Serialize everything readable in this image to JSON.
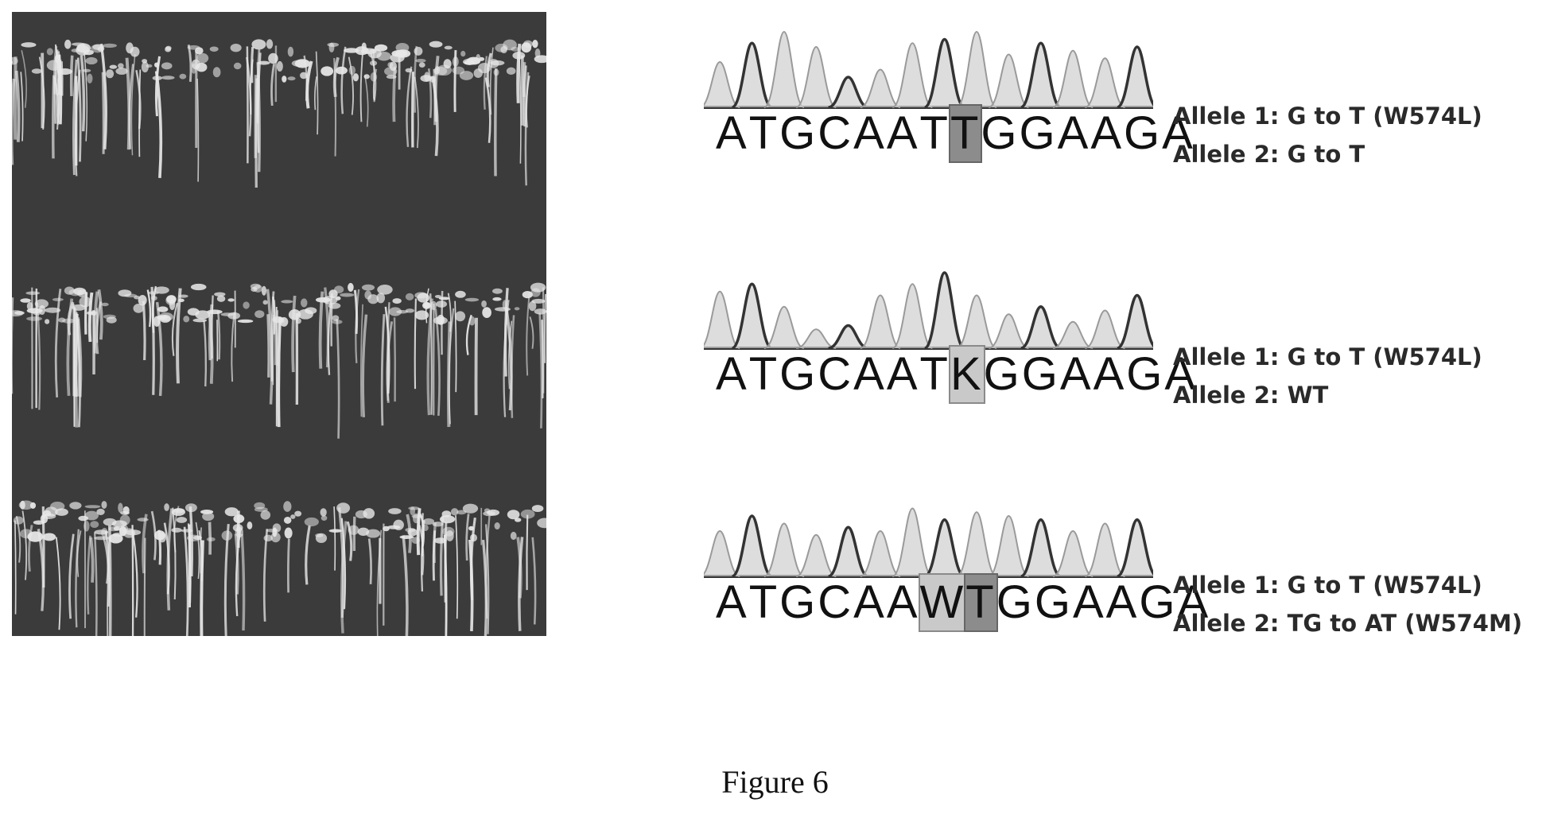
{
  "figure": {
    "caption": "Figure 6",
    "panels": [
      {
        "id": "p1",
        "sequence": [
          "A",
          "T",
          "G",
          "C",
          "A",
          "A",
          "T",
          "T",
          "G",
          "G",
          "A",
          "A",
          "G",
          "A"
        ],
        "highlight_index": 7,
        "highlight_style": "dark",
        "allele_1": "Allele 1: G to T (W574L)",
        "allele_2": "Allele 2: G to T"
      },
      {
        "id": "p2",
        "sequence": [
          "A",
          "T",
          "G",
          "C",
          "A",
          "A",
          "T",
          "K",
          "G",
          "G",
          "A",
          "A",
          "G",
          "A"
        ],
        "highlight_index": 7,
        "highlight_style": "light",
        "allele_1": "Allele 1: G to T (W574L)",
        "allele_2": "Allele 2: WT"
      },
      {
        "id": "p3",
        "sequence": [
          "A",
          "T",
          "G",
          "C",
          "A",
          "A",
          "W",
          "T",
          "G",
          "G",
          "A",
          "A",
          "G",
          "A"
        ],
        "highlight_index": [
          6,
          7
        ],
        "highlight_style": "mixed",
        "allele_1": "Allele 1:  G to T  (W574L)",
        "allele_2": "Allele 2: TG to AT (W574M)"
      }
    ],
    "colors": {
      "photo_background": "#3b3b3b",
      "seedling": "#e8e8e8",
      "trace_dark": "#333333",
      "trace_fill": "#cfcfcf"
    }
  }
}
